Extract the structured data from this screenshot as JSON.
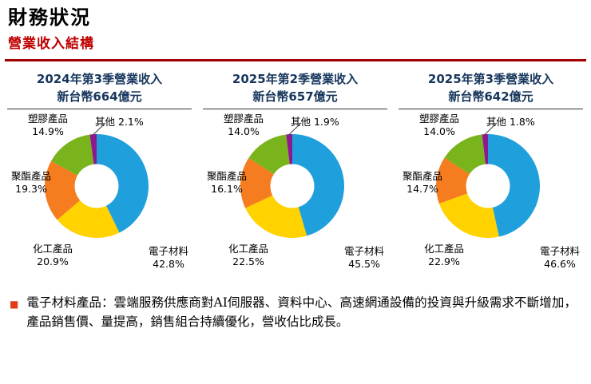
{
  "page": {
    "title": "財務狀況",
    "subtitle": "營業收入結構"
  },
  "chart_data": [
    {
      "type": "pie",
      "donut": true,
      "title": "2024年第3季營業收入",
      "subtitle": "新台幣664億元",
      "categories": [
        "電子材料",
        "化工產品",
        "聚酯產品",
        "塑膠產品",
        "其他"
      ],
      "values": [
        42.8,
        20.9,
        19.3,
        14.9,
        2.1
      ],
      "unit": "%",
      "legend_position": "around-labels"
    },
    {
      "type": "pie",
      "donut": true,
      "title": "2025年第2季營業收入",
      "subtitle": "新台幣657億元",
      "categories": [
        "電子材料",
        "化工產品",
        "聚酯產品",
        "塑膠產品",
        "其他"
      ],
      "values": [
        45.5,
        22.5,
        16.1,
        14.0,
        1.9
      ],
      "unit": "%",
      "legend_position": "around-labels"
    },
    {
      "type": "pie",
      "donut": true,
      "title": "2025年第3季營業收入",
      "subtitle": "新台幣642億元",
      "categories": [
        "電子材料",
        "化工產品",
        "聚酯產品",
        "塑膠產品",
        "其他"
      ],
      "values": [
        46.6,
        22.9,
        14.7,
        14.0,
        1.8
      ],
      "unit": "%",
      "legend_position": "around-labels"
    }
  ],
  "colors": {
    "slices": [
      "#1FA0DC",
      "#FFD200",
      "#F57C1F",
      "#7AB41D",
      "#8E188F"
    ],
    "title_blue": "#17365D",
    "subtitle_red": "#C00000",
    "rule_red": "#A00000",
    "bullet_red": "#E03A16"
  },
  "footnote": {
    "bullet": "■",
    "text": "電子材料產品：雲端服務供應商對AI伺服器、資料中心、高速網通設備的投資與升級需求不斷增加，產品銷售價、量提高，銷售組合持續優化，營收佔比成長。"
  }
}
